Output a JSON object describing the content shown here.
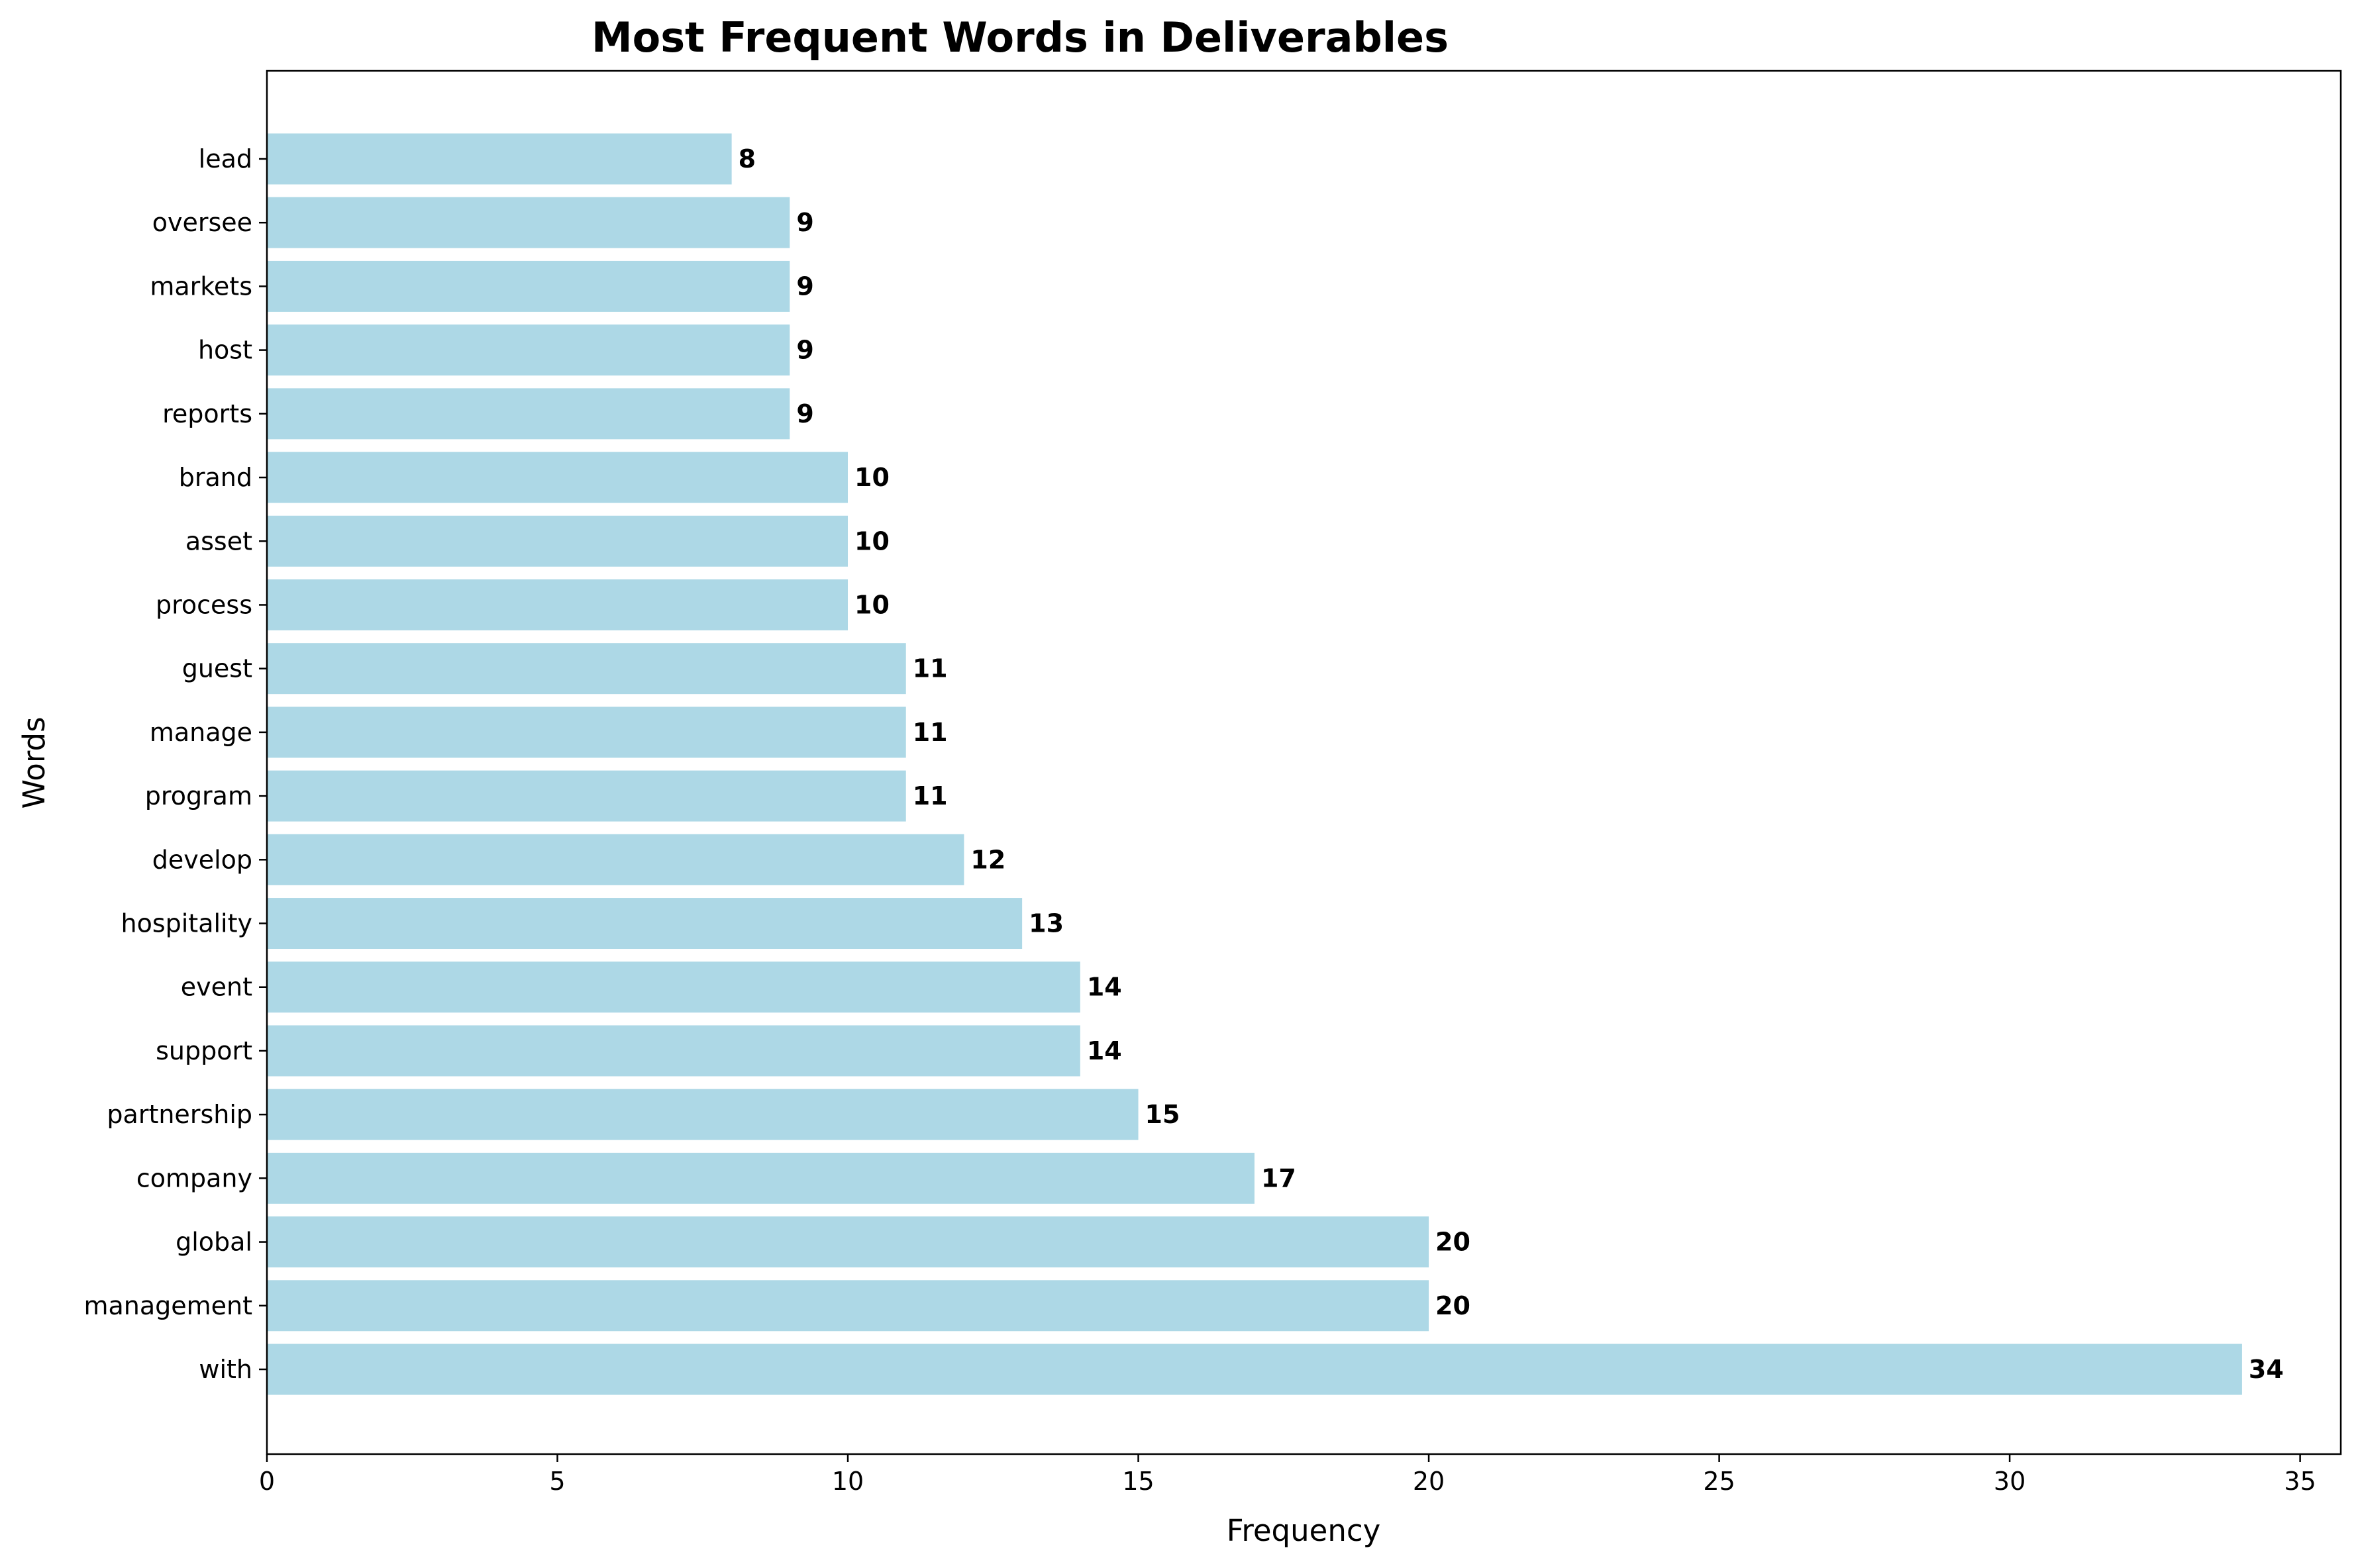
{
  "chart_data": {
    "type": "bar",
    "orientation": "horizontal",
    "title": "Most Frequent Words in Deliverables",
    "xlabel": "Frequency",
    "ylabel": "Words",
    "categories": [
      "with",
      "management",
      "global",
      "company",
      "partnership",
      "support",
      "event",
      "hospitality",
      "develop",
      "program",
      "manage",
      "guest",
      "process",
      "asset",
      "brand",
      "reports",
      "host",
      "markets",
      "oversee",
      "lead"
    ],
    "values": [
      34,
      20,
      20,
      17,
      15,
      14,
      14,
      13,
      12,
      11,
      11,
      11,
      10,
      10,
      10,
      9,
      9,
      9,
      9,
      8
    ],
    "xlim": [
      0,
      35.7
    ],
    "xticks": [
      0,
      5,
      10,
      15,
      20,
      25,
      30,
      35
    ],
    "grid": false,
    "legend": "none",
    "bar_color": "#add8e6"
  }
}
